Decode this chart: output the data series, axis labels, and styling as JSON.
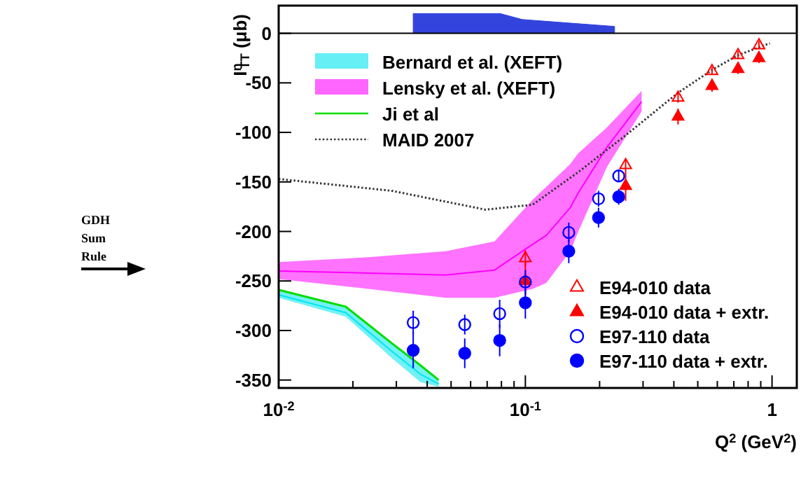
{
  "chart_data": {
    "type": "scatter",
    "xlabel": "Q$^{2}$ (GeV$^{2}$)",
    "ylabel": "I$^{n}$$_{TT}$ (μb)",
    "log": "x",
    "xlim": [
      0.01,
      1.26
    ],
    "ylim": [
      -358,
      28
    ],
    "xticks": [
      {
        "value": 0.01,
        "label": "10$^{-2}$"
      },
      {
        "value": 0.02,
        "label": null
      },
      {
        "value": 0.03,
        "label": null
      },
      {
        "value": 0.04,
        "label": null
      },
      {
        "value": 0.05,
        "label": null
      },
      {
        "value": 0.06,
        "label": null
      },
      {
        "value": 0.07,
        "label": null
      },
      {
        "value": 0.08,
        "label": null
      },
      {
        "value": 0.09,
        "label": null
      },
      {
        "value": 0.1,
        "label": "10$^{-1}$"
      },
      {
        "value": 0.2,
        "label": null
      },
      {
        "value": 0.3,
        "label": null
      },
      {
        "value": 0.4,
        "label": null
      },
      {
        "value": 0.5,
        "label": null
      },
      {
        "value": 0.6,
        "label": null
      },
      {
        "value": 0.7,
        "label": null
      },
      {
        "value": 0.8,
        "label": null
      },
      {
        "value": 0.9,
        "label": null
      },
      1
    ],
    "yticks": [
      0,
      -50,
      -100,
      -150,
      -200,
      -250,
      -300,
      -350
    ],
    "legend": "bottom right",
    "ref_lines": [
      {
        "axis": "y",
        "value": 0,
        "color": "#000000"
      }
    ],
    "annotations": [
      "GDH Sum Rule"
    ],
    "series": [
      {
        "type": "area",
        "color": "#3344dd",
        "x": [
          0.0351,
          0.079,
          0.097,
          0.23
        ],
        "values": [
          20,
          20,
          14,
          7
        ]
      },
      {
        "name": "Bernard et al. (XEFT)",
        "type": "line",
        "color": "#00e5ee",
        "x": [
          0.01,
          0.0187,
          0.0288,
          0.0375,
          0.0445
        ],
        "values": [
          -264,
          -282,
          -321,
          -344,
          -354
        ],
        "lower": [
          -267,
          -286,
          -328,
          -352,
          -357
        ],
        "upper": [
          -260,
          -277,
          -314,
          -336,
          -351
        ]
      },
      {
        "name": "Lensky et al. (XEFT)",
        "type": "line",
        "color": "#ff00ff",
        "x": [
          0.01,
          0.0231,
          0.0475,
          0.075,
          0.107,
          0.1216,
          0.152,
          0.164,
          0.214,
          0.296
        ],
        "values": [
          -240,
          -242,
          -244,
          -239,
          -213,
          -204,
          -176,
          -161,
          -115,
          -69
        ],
        "lower": [
          -248,
          -258,
          -267,
          -267,
          -258,
          -252,
          -220,
          -200,
          -135,
          -79
        ],
        "upper": [
          -231,
          -226,
          -220,
          -210,
          -168,
          -155,
          -132,
          -121,
          -95,
          -58
        ]
      },
      {
        "name": "Ji et al",
        "type": "line",
        "color": "#00dd00",
        "line_style": "solid",
        "x": [
          0.01,
          0.0187,
          0.0288,
          0.0375,
          0.0445
        ],
        "values": [
          -259,
          -276,
          -313,
          -335,
          -350
        ]
      },
      {
        "name": "MAID 2007",
        "type": "line",
        "color": "#333333",
        "line_style": "dotted",
        "x": [
          0.01,
          0.0288,
          0.069,
          0.107,
          0.164,
          0.255,
          0.416,
          0.571,
          0.728,
          0.98
        ],
        "values": [
          -147,
          -159,
          -178,
          -173,
          -140,
          -103,
          -60,
          -37,
          -22,
          -10
        ]
      },
      {
        "name": "E94-010 data",
        "marker": "triangle",
        "color": "#ff0000",
        "x": [
          0.1,
          0.255,
          0.416,
          0.571,
          0.728,
          0.885
        ],
        "values": [
          -227,
          -133,
          -65,
          -38,
          -22,
          -12
        ],
        "errors": [
          8,
          6,
          5,
          4,
          4,
          4
        ]
      },
      {
        "name": "E94-010 data + extr.",
        "marker": "triangle",
        "color": "#ff0000",
        "x": [
          0.1,
          0.255,
          0.416,
          0.571,
          0.728,
          0.885
        ],
        "values": [
          -250,
          -154,
          -84,
          -53,
          -36,
          -25
        ],
        "errors": [
          20,
          15,
          8,
          6,
          5,
          5
        ]
      },
      {
        "name": "E97-110 data",
        "marker": "circle",
        "color": "#0000ff",
        "x": [
          0.0351,
          0.0568,
          0.0787,
          0.1,
          0.15,
          0.198,
          0.239
        ],
        "values": [
          -292,
          -294,
          -283,
          -251,
          -201,
          -167,
          -144
        ],
        "errors": [
          12,
          10,
          14,
          12,
          10,
          8,
          6
        ]
      },
      {
        "name": "E97-110 data + extr.",
        "marker": "circle",
        "color": "#0000ff",
        "x": [
          0.0351,
          0.0568,
          0.0787,
          0.1,
          0.15,
          0.198,
          0.239
        ],
        "values": [
          -320,
          -323,
          -310,
          -272,
          -220,
          -186,
          -165
        ],
        "errors": [
          18,
          15,
          16,
          16,
          12,
          10,
          8
        ]
      }
    ]
  }
}
